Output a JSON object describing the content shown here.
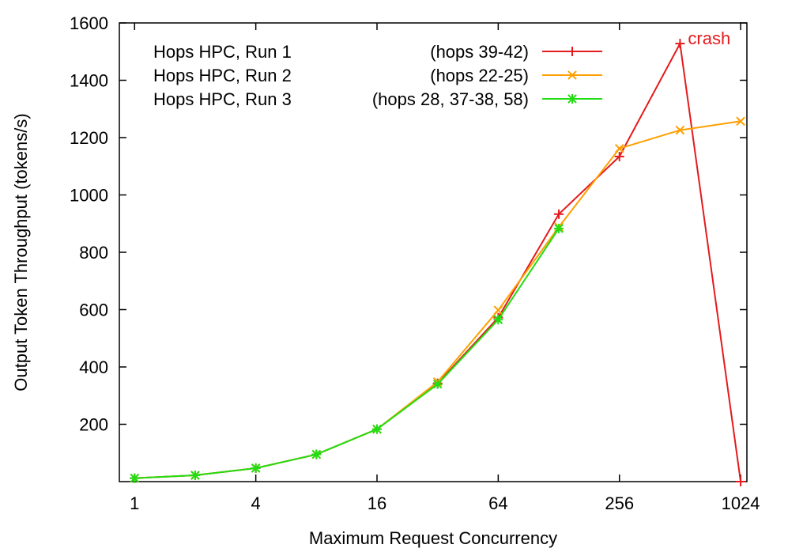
{
  "chart_data": {
    "type": "line",
    "title": "",
    "xlabel": "Maximum Request Concurrency",
    "ylabel": "Output Token Throughput (tokens/s)",
    "x_scale": "log2",
    "xlim": [
      0.84,
      1100
    ],
    "ylim": [
      0,
      1600
    ],
    "x_ticks": [
      1,
      4,
      16,
      64,
      256,
      1024
    ],
    "x_tick_labels": [
      "1",
      "4",
      "16",
      "64",
      "256",
      "1024"
    ],
    "y_ticks": [
      200,
      400,
      600,
      800,
      1000,
      1200,
      1400,
      1600
    ],
    "y_tick_labels": [
      "200",
      "400",
      "600",
      "800",
      "1000",
      "1200",
      "1400",
      "1600"
    ],
    "grid": false,
    "legend_position": "top-left",
    "series": [
      {
        "name": "Hops HPC, Run 1",
        "note": "(hops 39-42)",
        "color": "#e41a1c",
        "marker": "plus",
        "x": [
          1,
          2,
          4,
          8,
          16,
          32,
          64,
          128,
          256,
          512,
          1024
        ],
        "y": [
          12,
          22,
          47,
          95,
          183,
          343,
          572,
          933,
          1134,
          1528,
          0
        ]
      },
      {
        "name": "Hops HPC, Run 2",
        "note": "(hops 22-25)",
        "color": "#ff9f00",
        "marker": "cross",
        "x": [
          1,
          2,
          4,
          8,
          16,
          32,
          64,
          128,
          256,
          512,
          1024
        ],
        "y": [
          12,
          22,
          47,
          95,
          183,
          348,
          598,
          888,
          1162,
          1226,
          1257
        ]
      },
      {
        "name": "Hops HPC, Run 3",
        "note": "(hops 28, 37-38, 58)",
        "color": "#22dd11",
        "marker": "star",
        "x": [
          1,
          2,
          4,
          8,
          16,
          32,
          64,
          128
        ],
        "y": [
          12,
          22,
          47,
          95,
          183,
          340,
          565,
          883
        ]
      }
    ],
    "annotations": [
      {
        "text": "crash",
        "x": 512,
        "y": 1528,
        "color": "#e41a1c"
      }
    ]
  }
}
